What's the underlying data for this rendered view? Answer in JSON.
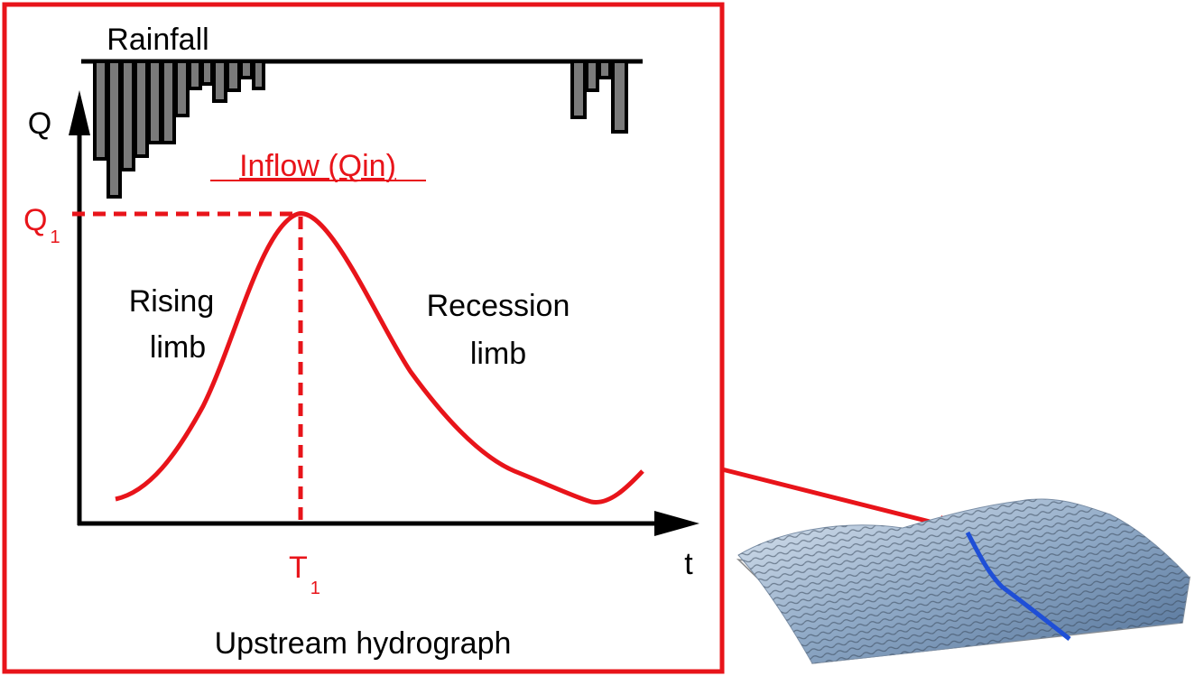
{
  "labels": {
    "rainfall": "Rainfall",
    "q_axis": "Q",
    "t_axis": "t",
    "inflow": "Inflow (Qin)",
    "peak_q": {
      "main": "Q",
      "sub": "1"
    },
    "peak_t": {
      "main": "T",
      "sub": "1"
    },
    "rising": [
      "Rising",
      "limb"
    ],
    "recession": [
      "Recession",
      "limb"
    ],
    "caption": "Upstream hydrograph"
  }
}
